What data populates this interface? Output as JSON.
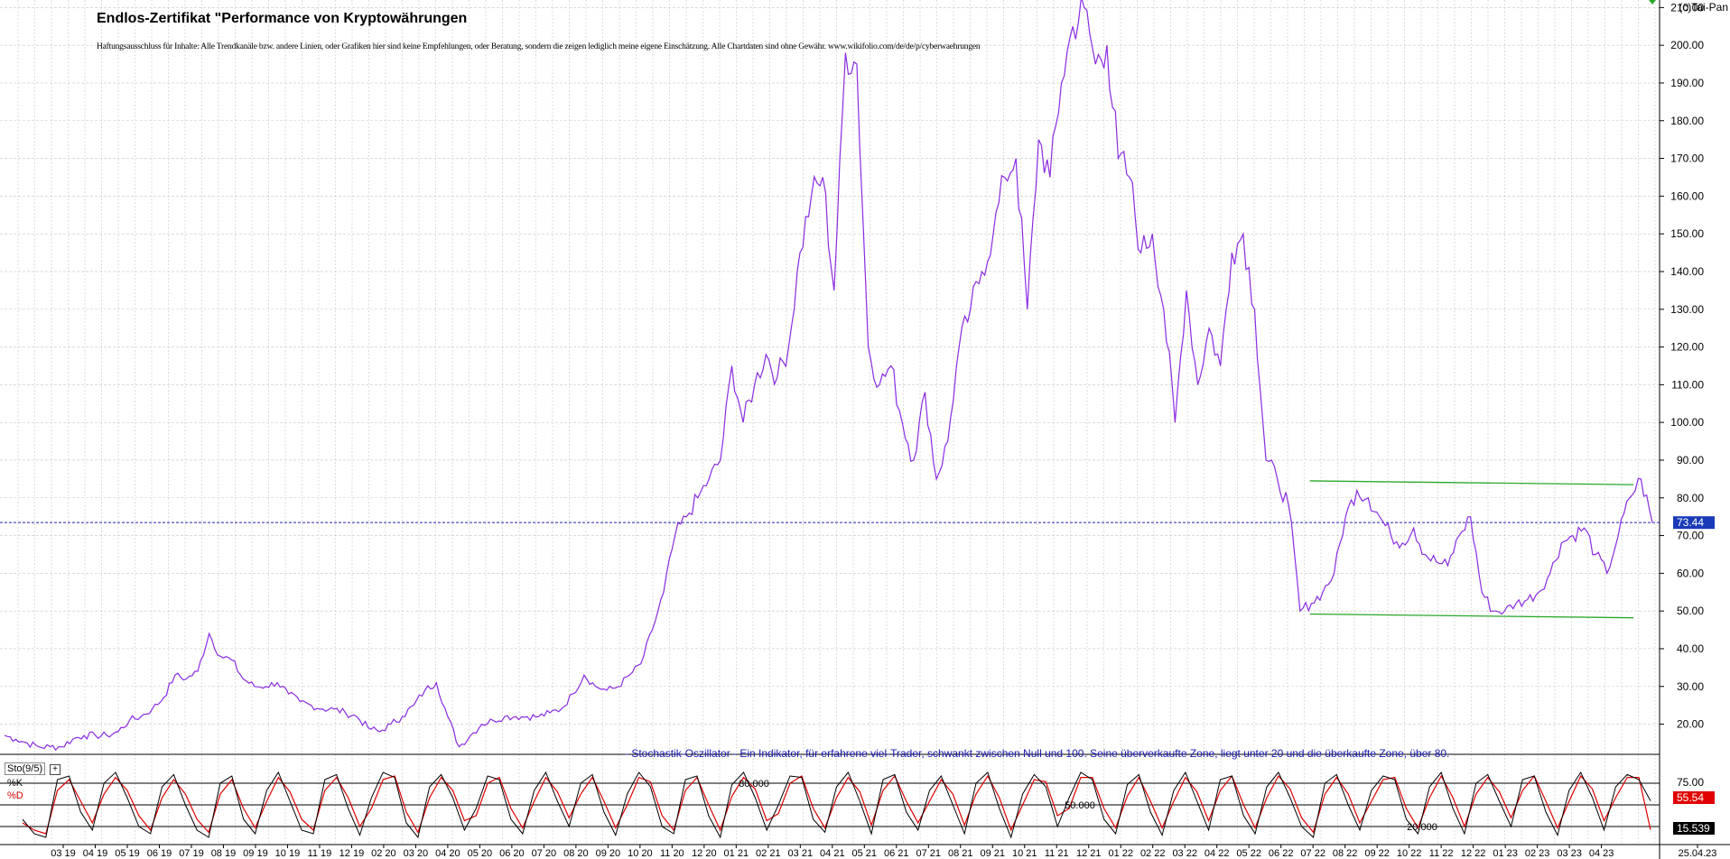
{
  "header": {
    "title": "Endlos-Zertifikat \"Performance von Kryptowährungen",
    "disclaimer": "Haftungsausschluss für Inhalte: Alle Trendkanäle bzw. andere Linien, oder Grafiken hier sind keine Empfehlungen, oder Beratung, sondern die zeigen lediglich meine eigene Einschätzung. Alle Chartdaten sind ohne Gewähr.  www.wikifolio.com/de/de/p/cyberwaehrungen",
    "copyright": "(c)Tai-Pan"
  },
  "oscillator": {
    "description": "- Stochastik-Oszillator - Ein Indikator, für erfahrene viel-Trader, schwankt zwischen Null und 100. Seine überverkaufte Zone, liegt unter 20 und die überkaufte Zone, über 80.",
    "label": "Sto(9/5)",
    "k_label": "%K",
    "d_label": "%D",
    "level_80_label": "80.000",
    "level_50_label": "50.000",
    "level_20_label": "20.000",
    "k_value_badge": "55.54",
    "d_value_badge": "15.539"
  },
  "colors": {
    "price_line": "#8a2be2",
    "channel": "#2aa82a",
    "current_line": "#2020b0",
    "k_line": "#000000",
    "d_line": "#e00000",
    "badge_price": "#1a3ab8",
    "badge_k": "#e00000",
    "badge_d": "#000000",
    "grid": "#c8c8c8"
  },
  "chart_data": {
    "type": "line",
    "title": "Endlos-Zertifikat \"Performance von Kryptowährungen",
    "x_axis_labels": [
      "03 19",
      "04 19",
      "05 19",
      "06 19",
      "07 19",
      "08 19",
      "09 19",
      "10 19",
      "11 19",
      "12 19",
      "02 20",
      "03 20",
      "04 20",
      "05 20",
      "06 20",
      "07 20",
      "08 20",
      "09 20",
      "10 20",
      "11 20",
      "12 20",
      "01 21",
      "02 21",
      "03 21",
      "04 21",
      "05 21",
      "06 21",
      "07 21",
      "08 21",
      "09 21",
      "10 21",
      "11 21",
      "12 21",
      "01 22",
      "02 22",
      "03 22",
      "04 22",
      "05 22",
      "06 22",
      "07 22",
      "08 22",
      "09 22",
      "10 22",
      "11 22",
      "12 22",
      "01 23",
      "02 23",
      "03 23",
      "04 23",
      "25.04.23"
    ],
    "y_axis_labels": [
      "20.00",
      "30.00",
      "40.00",
      "50.00",
      "60.00",
      "70.00",
      "80.00",
      "90.00",
      "100.00",
      "110.00",
      "120.00",
      "130.00",
      "140.00",
      "150.00",
      "160.00",
      "170.00",
      "180.00",
      "190.00",
      "200.00",
      "210.00"
    ],
    "ylim": [
      12,
      212
    ],
    "current_value": 73.44,
    "current_value_label": "73.44",
    "series": [
      {
        "values": [
          17,
          16,
          15,
          14,
          14,
          14,
          16,
          17,
          17,
          17,
          18,
          21,
          22,
          24,
          27,
          33,
          32,
          34,
          44,
          38,
          37,
          32,
          30,
          30,
          31,
          28,
          26,
          25,
          24,
          24,
          23,
          22,
          19,
          18,
          20,
          22,
          25,
          29,
          31,
          22,
          14,
          17,
          20,
          21,
          22,
          22,
          22,
          22,
          23,
          24,
          28,
          33,
          30,
          29,
          30,
          33,
          36,
          45,
          55,
          70,
          75,
          80,
          85,
          90,
          115,
          100,
          110,
          118,
          112,
          120,
          145,
          160,
          165,
          135,
          198,
          195,
          120,
          110,
          115,
          100,
          90,
          108,
          85,
          95,
          120,
          130,
          140,
          150,
          165,
          170,
          130,
          175,
          165,
          190,
          205,
          210,
          195,
          200,
          170,
          165,
          145,
          150,
          130,
          100,
          135,
          110,
          125,
          115,
          145,
          150,
          130,
          90,
          85,
          78,
          50,
          52,
          55,
          60,
          75,
          82,
          80,
          75,
          70,
          68,
          72,
          65,
          63,
          62,
          70,
          75,
          55,
          50,
          50,
          52,
          53,
          55,
          60,
          68,
          70,
          72,
          65,
          60,
          70,
          80,
          85,
          73.44
        ]
      },
      {
        "name": "%K",
        "values": [
          30,
          10,
          5,
          85,
          90,
          40,
          15,
          80,
          95,
          60,
          20,
          10,
          75,
          92,
          50,
          15,
          5,
          80,
          90,
          30,
          10,
          70,
          95,
          55,
          15,
          10,
          85,
          92,
          45,
          8,
          60,
          95,
          88,
          25,
          5,
          75,
          92,
          60,
          15,
          45,
          90,
          85,
          30,
          10,
          70,
          95,
          55,
          20,
          80,
          92,
          40,
          8,
          65,
          95,
          75,
          20,
          10,
          85,
          90,
          35,
          5,
          78,
          95,
          60,
          15,
          50,
          90,
          88,
          30,
          12,
          75,
          95,
          55,
          10,
          85,
          92,
          40,
          15,
          70,
          90,
          50,
          10,
          80,
          95,
          45,
          5,
          65,
          92,
          75,
          20,
          60,
          95,
          85,
          30,
          10,
          78,
          92,
          40,
          8,
          70,
          95,
          55,
          15,
          85,
          90,
          35,
          10,
          75,
          95,
          60,
          20,
          5,
          80,
          92,
          50,
          15,
          70,
          90,
          85,
          30,
          10,
          75,
          95,
          45,
          10,
          80,
          92,
          55,
          20,
          85,
          90,
          40,
          8,
          70,
          95,
          60,
          15,
          75,
          92,
          85,
          55.54
        ]
      },
      {
        "name": "%D",
        "values": [
          25,
          15,
          10,
          70,
          85,
          55,
          25,
          65,
          88,
          70,
          35,
          15,
          60,
          85,
          65,
          30,
          12,
          65,
          85,
          45,
          18,
          55,
          88,
          68,
          30,
          15,
          70,
          88,
          60,
          20,
          45,
          85,
          90,
          40,
          12,
          60,
          88,
          70,
          28,
          35,
          80,
          88,
          45,
          18,
          55,
          88,
          68,
          32,
          65,
          88,
          55,
          18,
          50,
          88,
          82,
          35,
          15,
          70,
          88,
          50,
          15,
          62,
          88,
          72,
          28,
          38,
          80,
          90,
          45,
          18,
          60,
          88,
          68,
          22,
          70,
          90,
          55,
          25,
          55,
          85,
          65,
          22,
          65,
          90,
          60,
          15,
          50,
          85,
          82,
          35,
          45,
          88,
          88,
          45,
          18,
          62,
          88,
          55,
          18,
          55,
          88,
          68,
          28,
          70,
          90,
          50,
          18,
          60,
          90,
          72,
          32,
          12,
          65,
          88,
          65,
          25,
          55,
          85,
          88,
          45,
          18,
          60,
          90,
          60,
          20,
          65,
          88,
          68,
          32,
          70,
          90,
          55,
          18,
          55,
          90,
          72,
          28,
          60,
          88,
          88,
          15.539
        ]
      }
    ],
    "channel_lines": [
      {
        "from": [
          38.9,
          84.5
        ],
        "to": [
          49,
          83.5
        ]
      },
      {
        "from": [
          38.9,
          49.2
        ],
        "to": [
          49,
          48.2
        ]
      }
    ],
    "oscillator_levels": [
      80,
      50,
      20
    ],
    "grid": true
  }
}
